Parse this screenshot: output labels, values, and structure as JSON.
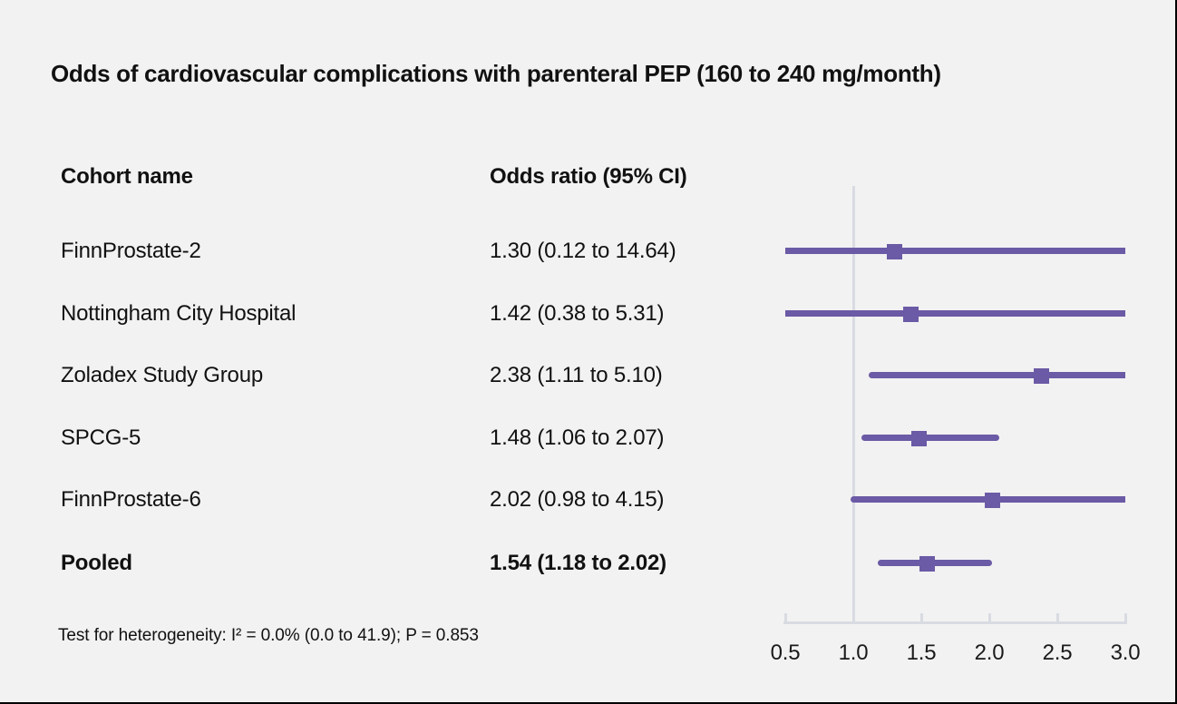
{
  "colors": {
    "background": "#f2f2f2",
    "marker_purple": "#6b5aa5",
    "axis_gray": "#d8dbe2",
    "text": "#111111"
  },
  "chart_data": {
    "type": "forest",
    "title": "Odds of cardiovascular complications with parenteral PEP (160 to 240 mg/month)",
    "columns": {
      "cohort": "Cohort name",
      "odds_ratio": "Odds ratio (95% CI)"
    },
    "studies": [
      {
        "name": "FinnProstate-2",
        "or": 1.3,
        "ci_low": 0.12,
        "ci_high": 14.64,
        "label": "1.30 (0.12 to 14.64)",
        "pooled": false
      },
      {
        "name": "Nottingham City Hospital",
        "or": 1.42,
        "ci_low": 0.38,
        "ci_high": 5.31,
        "label": "1.42 (0.38 to 5.31)",
        "pooled": false
      },
      {
        "name": "Zoladex Study Group",
        "or": 2.38,
        "ci_low": 1.11,
        "ci_high": 5.1,
        "label": "2.38 (1.11 to 5.10)",
        "pooled": false
      },
      {
        "name": "SPCG-5",
        "or": 1.48,
        "ci_low": 1.06,
        "ci_high": 2.07,
        "label": "1.48 (1.06 to 2.07)",
        "pooled": false
      },
      {
        "name": "FinnProstate-6",
        "or": 2.02,
        "ci_low": 0.98,
        "ci_high": 4.15,
        "label": "2.02 (0.98 to 4.15)",
        "pooled": false
      },
      {
        "name": "Pooled",
        "or": 1.54,
        "ci_low": 1.18,
        "ci_high": 2.02,
        "label": "1.54 (1.18 to 2.02)",
        "pooled": true
      }
    ],
    "heterogeneity": "Test for heterogeneity: I² = 0.0% (0.0 to 41.9); P = 0.853",
    "x_tick_labels": [
      "0.5",
      "1.0",
      "1.5",
      "2.0",
      "2.5",
      "3.0"
    ],
    "xlim": [
      0.5,
      3.0
    ],
    "reference_line": 1.0,
    "xscale": "linear",
    "legend": "none",
    "grid": false
  }
}
